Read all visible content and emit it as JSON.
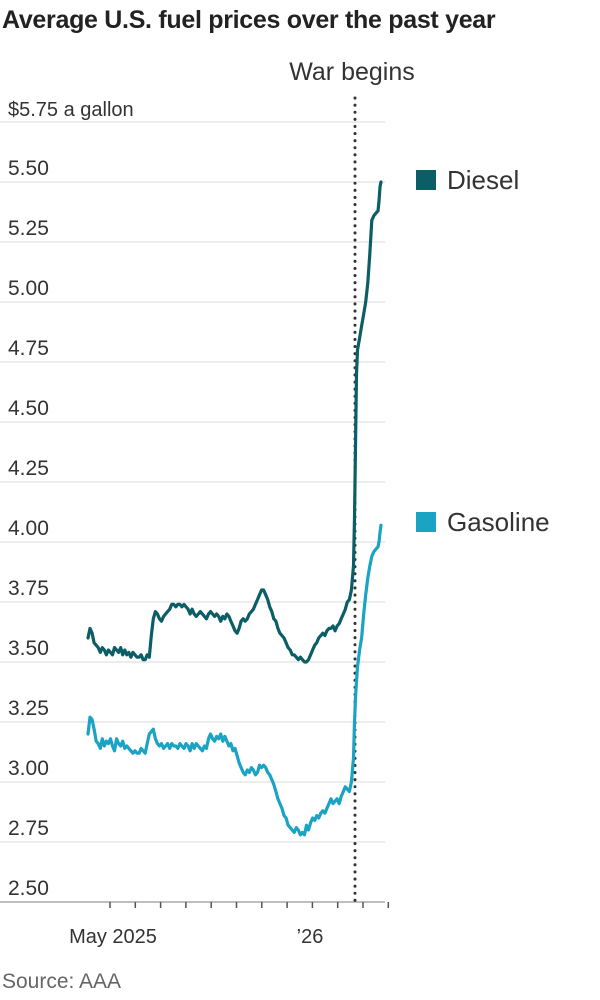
{
  "title": "Average U.S. fuel prices over the past year",
  "source": "Source: AAA",
  "chart_data": {
    "type": "line",
    "unit_label": "$5.75 a gallon",
    "y_ticks": [
      "5.50",
      "5.25",
      "5.00",
      "4.75",
      "4.50",
      "4.25",
      "4.00",
      "3.75",
      "3.50",
      "3.25",
      "3.00",
      "2.75",
      "2.50"
    ],
    "x_labels": [
      "May 2025",
      "’26"
    ],
    "annotation": "War begins",
    "ylim": [
      2.5,
      5.75
    ],
    "grid": true,
    "legend_position": "right",
    "colors": {
      "diesel": "#0b5e66",
      "gasoline": "#1aa3c3"
    },
    "series": [
      {
        "name": "Diesel",
        "key": "diesel",
        "points": [
          [
            0,
            3.6
          ],
          [
            2,
            3.64
          ],
          [
            4,
            3.62
          ],
          [
            6,
            3.58
          ],
          [
            8,
            3.57
          ],
          [
            10,
            3.56
          ],
          [
            12,
            3.54
          ],
          [
            14,
            3.56
          ],
          [
            16,
            3.55
          ],
          [
            18,
            3.53
          ],
          [
            20,
            3.55
          ],
          [
            22,
            3.54
          ],
          [
            24,
            3.53
          ],
          [
            26,
            3.56
          ],
          [
            28,
            3.55
          ],
          [
            30,
            3.54
          ],
          [
            32,
            3.56
          ],
          [
            34,
            3.53
          ],
          [
            36,
            3.55
          ],
          [
            38,
            3.53
          ],
          [
            40,
            3.54
          ],
          [
            42,
            3.52
          ],
          [
            44,
            3.54
          ],
          [
            46,
            3.53
          ],
          [
            48,
            3.52
          ],
          [
            50,
            3.52
          ],
          [
            52,
            3.53
          ],
          [
            54,
            3.51
          ],
          [
            56,
            3.51
          ],
          [
            58,
            3.53
          ],
          [
            60,
            3.52
          ],
          [
            62,
            3.61
          ],
          [
            64,
            3.68
          ],
          [
            66,
            3.71
          ],
          [
            68,
            3.7
          ],
          [
            70,
            3.68
          ],
          [
            72,
            3.67
          ],
          [
            74,
            3.69
          ],
          [
            76,
            3.7
          ],
          [
            78,
            3.71
          ],
          [
            80,
            3.72
          ],
          [
            82,
            3.74
          ],
          [
            84,
            3.74
          ],
          [
            86,
            3.73
          ],
          [
            88,
            3.74
          ],
          [
            90,
            3.74
          ],
          [
            92,
            3.73
          ],
          [
            94,
            3.74
          ],
          [
            96,
            3.73
          ],
          [
            98,
            3.72
          ],
          [
            100,
            3.7
          ],
          [
            102,
            3.72
          ],
          [
            104,
            3.7
          ],
          [
            106,
            3.69
          ],
          [
            108,
            3.7
          ],
          [
            110,
            3.71
          ],
          [
            112,
            3.7
          ],
          [
            114,
            3.69
          ],
          [
            116,
            3.68
          ],
          [
            118,
            3.7
          ],
          [
            120,
            3.71
          ],
          [
            122,
            3.7
          ],
          [
            124,
            3.69
          ],
          [
            126,
            3.7
          ],
          [
            128,
            3.69
          ],
          [
            130,
            3.67
          ],
          [
            132,
            3.69
          ],
          [
            134,
            3.68
          ],
          [
            136,
            3.7
          ],
          [
            138,
            3.69
          ],
          [
            140,
            3.67
          ],
          [
            142,
            3.65
          ],
          [
            144,
            3.63
          ],
          [
            146,
            3.62
          ],
          [
            148,
            3.64
          ],
          [
            150,
            3.67
          ],
          [
            152,
            3.68
          ],
          [
            154,
            3.67
          ],
          [
            156,
            3.68
          ],
          [
            158,
            3.7
          ],
          [
            160,
            3.71
          ],
          [
            162,
            3.72
          ],
          [
            164,
            3.74
          ],
          [
            166,
            3.76
          ],
          [
            168,
            3.78
          ],
          [
            170,
            3.8
          ],
          [
            172,
            3.8
          ],
          [
            174,
            3.78
          ],
          [
            176,
            3.76
          ],
          [
            178,
            3.73
          ],
          [
            180,
            3.71
          ],
          [
            182,
            3.68
          ],
          [
            184,
            3.67
          ],
          [
            186,
            3.64
          ],
          [
            188,
            3.62
          ],
          [
            190,
            3.61
          ],
          [
            192,
            3.6
          ],
          [
            194,
            3.58
          ],
          [
            196,
            3.56
          ],
          [
            198,
            3.55
          ],
          [
            200,
            3.53
          ],
          [
            202,
            3.53
          ],
          [
            204,
            3.52
          ],
          [
            206,
            3.51
          ],
          [
            208,
            3.52
          ],
          [
            210,
            3.51
          ],
          [
            212,
            3.5
          ],
          [
            214,
            3.5
          ],
          [
            216,
            3.51
          ],
          [
            218,
            3.53
          ],
          [
            220,
            3.55
          ],
          [
            222,
            3.57
          ],
          [
            224,
            3.58
          ],
          [
            226,
            3.6
          ],
          [
            228,
            3.61
          ],
          [
            230,
            3.62
          ],
          [
            232,
            3.61
          ],
          [
            234,
            3.63
          ],
          [
            236,
            3.64
          ],
          [
            238,
            3.64
          ],
          [
            240,
            3.65
          ],
          [
            242,
            3.63
          ],
          [
            244,
            3.65
          ],
          [
            246,
            3.66
          ],
          [
            248,
            3.68
          ],
          [
            250,
            3.7
          ],
          [
            252,
            3.72
          ],
          [
            254,
            3.75
          ],
          [
            256,
            3.76
          ],
          [
            258,
            3.8
          ],
          [
            260,
            3.9
          ],
          [
            261,
            4.1
          ],
          [
            262,
            4.4
          ],
          [
            263,
            4.7
          ],
          [
            264,
            4.8
          ],
          [
            266,
            4.85
          ],
          [
            268,
            4.9
          ],
          [
            270,
            4.95
          ],
          [
            272,
            5.0
          ],
          [
            274,
            5.08
          ],
          [
            276,
            5.2
          ],
          [
            278,
            5.34
          ],
          [
            280,
            5.36
          ],
          [
            282,
            5.37
          ],
          [
            284,
            5.38
          ],
          [
            285,
            5.42
          ],
          [
            286,
            5.48
          ],
          [
            287,
            5.5
          ]
        ]
      },
      {
        "name": "Gasoline",
        "key": "gasoline",
        "points": [
          [
            0,
            3.2
          ],
          [
            2,
            3.27
          ],
          [
            4,
            3.26
          ],
          [
            6,
            3.22
          ],
          [
            8,
            3.17
          ],
          [
            10,
            3.16
          ],
          [
            12,
            3.14
          ],
          [
            14,
            3.18
          ],
          [
            16,
            3.15
          ],
          [
            18,
            3.17
          ],
          [
            20,
            3.16
          ],
          [
            22,
            3.18
          ],
          [
            24,
            3.15
          ],
          [
            26,
            3.13
          ],
          [
            28,
            3.18
          ],
          [
            30,
            3.16
          ],
          [
            32,
            3.15
          ],
          [
            34,
            3.17
          ],
          [
            36,
            3.14
          ],
          [
            38,
            3.15
          ],
          [
            40,
            3.14
          ],
          [
            42,
            3.13
          ],
          [
            44,
            3.12
          ],
          [
            46,
            3.13
          ],
          [
            48,
            3.12
          ],
          [
            50,
            3.12
          ],
          [
            52,
            3.14
          ],
          [
            54,
            3.13
          ],
          [
            56,
            3.12
          ],
          [
            58,
            3.16
          ],
          [
            60,
            3.2
          ],
          [
            62,
            3.21
          ],
          [
            64,
            3.22
          ],
          [
            66,
            3.18
          ],
          [
            68,
            3.16
          ],
          [
            70,
            3.15
          ],
          [
            72,
            3.16
          ],
          [
            74,
            3.14
          ],
          [
            76,
            3.15
          ],
          [
            78,
            3.16
          ],
          [
            80,
            3.14
          ],
          [
            82,
            3.16
          ],
          [
            84,
            3.15
          ],
          [
            86,
            3.15
          ],
          [
            88,
            3.14
          ],
          [
            90,
            3.16
          ],
          [
            92,
            3.15
          ],
          [
            94,
            3.14
          ],
          [
            96,
            3.16
          ],
          [
            98,
            3.15
          ],
          [
            100,
            3.13
          ],
          [
            102,
            3.16
          ],
          [
            104,
            3.14
          ],
          [
            106,
            3.16
          ],
          [
            108,
            3.15
          ],
          [
            110,
            3.14
          ],
          [
            112,
            3.13
          ],
          [
            114,
            3.15
          ],
          [
            116,
            3.14
          ],
          [
            118,
            3.18
          ],
          [
            120,
            3.2
          ],
          [
            122,
            3.18
          ],
          [
            124,
            3.17
          ],
          [
            126,
            3.19
          ],
          [
            128,
            3.18
          ],
          [
            130,
            3.2
          ],
          [
            132,
            3.17
          ],
          [
            134,
            3.19
          ],
          [
            136,
            3.17
          ],
          [
            138,
            3.15
          ],
          [
            140,
            3.16
          ],
          [
            142,
            3.13
          ],
          [
            144,
            3.14
          ],
          [
            146,
            3.11
          ],
          [
            148,
            3.08
          ],
          [
            150,
            3.06
          ],
          [
            152,
            3.04
          ],
          [
            154,
            3.03
          ],
          [
            156,
            3.05
          ],
          [
            158,
            3.04
          ],
          [
            160,
            3.06
          ],
          [
            162,
            3.05
          ],
          [
            164,
            3.03
          ],
          [
            166,
            3.04
          ],
          [
            168,
            3.07
          ],
          [
            170,
            3.06
          ],
          [
            172,
            3.07
          ],
          [
            174,
            3.06
          ],
          [
            176,
            3.04
          ],
          [
            178,
            3.03
          ],
          [
            180,
            3.01
          ],
          [
            182,
            2.99
          ],
          [
            184,
            2.96
          ],
          [
            186,
            2.93
          ],
          [
            188,
            2.91
          ],
          [
            190,
            2.89
          ],
          [
            192,
            2.86
          ],
          [
            194,
            2.85
          ],
          [
            196,
            2.82
          ],
          [
            198,
            2.81
          ],
          [
            200,
            2.8
          ],
          [
            202,
            2.79
          ],
          [
            204,
            2.81
          ],
          [
            206,
            2.8
          ],
          [
            208,
            2.78
          ],
          [
            210,
            2.79
          ],
          [
            212,
            2.78
          ],
          [
            214,
            2.82
          ],
          [
            216,
            2.8
          ],
          [
            218,
            2.83
          ],
          [
            220,
            2.85
          ],
          [
            222,
            2.84
          ],
          [
            224,
            2.86
          ],
          [
            226,
            2.85
          ],
          [
            228,
            2.87
          ],
          [
            230,
            2.88
          ],
          [
            232,
            2.87
          ],
          [
            234,
            2.89
          ],
          [
            236,
            2.91
          ],
          [
            238,
            2.93
          ],
          [
            240,
            2.91
          ],
          [
            242,
            2.92
          ],
          [
            244,
            2.93
          ],
          [
            246,
            2.91
          ],
          [
            248,
            2.94
          ],
          [
            250,
            2.96
          ],
          [
            252,
            2.98
          ],
          [
            254,
            2.97
          ],
          [
            256,
            2.96
          ],
          [
            258,
            3.0
          ],
          [
            260,
            3.1
          ],
          [
            261,
            3.25
          ],
          [
            262,
            3.35
          ],
          [
            263,
            3.42
          ],
          [
            264,
            3.48
          ],
          [
            266,
            3.55
          ],
          [
            268,
            3.6
          ],
          [
            270,
            3.7
          ],
          [
            272,
            3.78
          ],
          [
            274,
            3.85
          ],
          [
            276,
            3.9
          ],
          [
            278,
            3.94
          ],
          [
            280,
            3.96
          ],
          [
            282,
            3.97
          ],
          [
            284,
            3.98
          ],
          [
            285,
            4.0
          ],
          [
            286,
            4.04
          ],
          [
            287,
            4.07
          ]
        ]
      }
    ]
  }
}
